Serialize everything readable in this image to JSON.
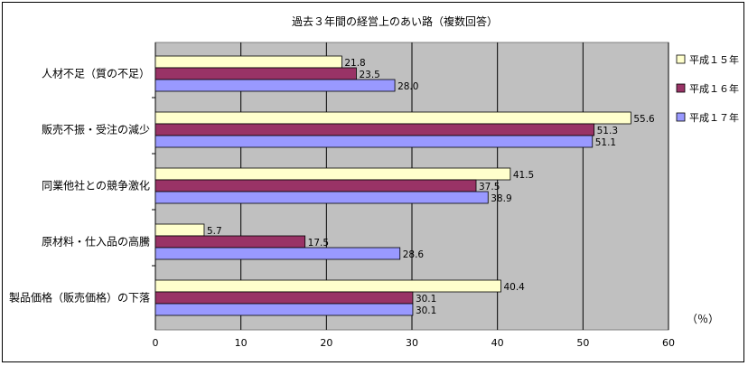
{
  "chart_data": {
    "type": "bar",
    "orientation": "horizontal",
    "title": "過去３年間の経営上のあい路（複数回答）",
    "unit_label": "（％）",
    "categories": [
      "人材不足（質の不足）",
      "販売不振・受注の減少",
      "同業他社との競争激化",
      "原材料・仕入品の高騰",
      "製品価格（販売価格）の下落"
    ],
    "series": [
      {
        "name": "平成１５年",
        "color": "#FFFFCC",
        "values": [
          21.8,
          55.6,
          41.5,
          5.7,
          40.4
        ]
      },
      {
        "name": "平成１６年",
        "color": "#993366",
        "values": [
          23.5,
          51.3,
          37.5,
          17.5,
          30.1
        ]
      },
      {
        "name": "平成１７年",
        "color": "#9999FF",
        "values": [
          28.0,
          51.1,
          38.9,
          28.6,
          30.1
        ]
      }
    ],
    "xlim": [
      0,
      60
    ],
    "xticks": [
      0,
      10,
      20,
      30,
      40,
      50,
      60
    ],
    "plot_background": "#C0C0C0",
    "grid": true,
    "legend_position": "right"
  }
}
